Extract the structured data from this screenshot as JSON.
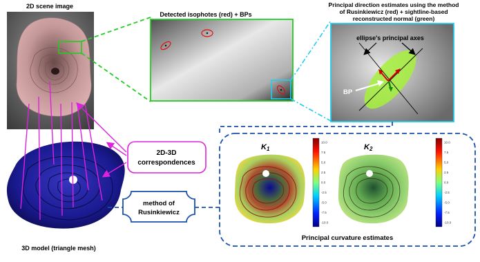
{
  "labels": {
    "scene_image": "2D scene image",
    "isophotes": "Detected isophotes (red) + BPs",
    "principal_dir_line1": "Principal direction estimates using the method",
    "principal_dir_line2": "of Rusinkiewicz (red) + sightline-based",
    "principal_dir_line3": "reconstructed normal (green)",
    "ellipse_axes": "ellipse's principal axes",
    "bp": "BP",
    "correspondences_line1": "2D-3D",
    "correspondences_line2": "correspondences",
    "method_line1": "method of",
    "method_line2": "Rusinkiewicz",
    "model_3d": "3D model (triangle mesh)",
    "curvature_caption": "Principal curvature estimates",
    "k1": "K",
    "k1_sub": "1",
    "k2": "K",
    "k2_sub": "2"
  },
  "colorbar_ticks": [
    "10.0",
    "7.5",
    "5.0",
    "2.5",
    "0.0",
    "-2.5",
    "-5.0",
    "-7.5",
    "-10.0"
  ],
  "colors": {
    "green_box": "#22cc22",
    "cyan_box": "#22ccee",
    "magenta": "#dd22dd",
    "blue_dashed": "#1a4fb0",
    "mesh_blue": "#1a1a90",
    "ellipse_green": "#a6f03c"
  }
}
